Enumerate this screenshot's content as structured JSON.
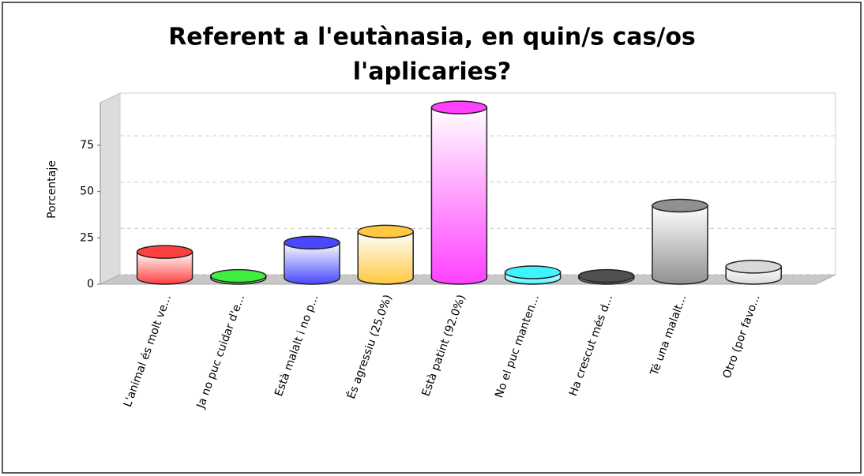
{
  "chart_data": {
    "type": "bar3d",
    "title": [
      "Referent a l'eutànasia, en quin/s cas/os",
      "l'aplicaries?"
    ],
    "y_label": "Porcentaje",
    "categories": [
      "L'animal és molt ve...",
      "Ja no puc cuidar d'e...",
      "Està malalt i no p...",
      "És agressiu (25.0%)",
      "Està patint (92.0%)",
      "No el puc manten...",
      "Ha crescut més d...",
      "Té una malalt...",
      "Otro (por favo..."
    ],
    "values": [
      14,
      1,
      19,
      25,
      92,
      3,
      1,
      39,
      6
    ],
    "colors": [
      "#ff4040",
      "#40ee40",
      "#4848ff",
      "#ffc840",
      "#ff40ff",
      "#40f4ff",
      "#505050",
      "#909090",
      "#d8d8d8"
    ],
    "ylim": [
      0,
      98
    ],
    "yticks": [
      0,
      25,
      50,
      75
    ],
    "grid": true
  }
}
